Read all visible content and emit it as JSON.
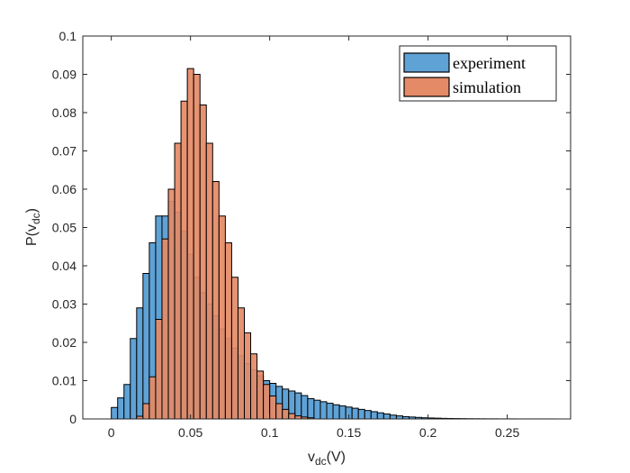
{
  "chart_data": {
    "type": "bar",
    "subtype": "overlapping-histogram",
    "xlabel": {
      "main": "v",
      "sub": "dc",
      "suffix": "(V)"
    },
    "ylabel": {
      "main": "P(v",
      "sub": "dc",
      "suffix": ")"
    },
    "xlim": [
      -0.018,
      0.29
    ],
    "ylim": [
      0,
      0.1
    ],
    "xticks": [
      0,
      0.05,
      0.1,
      0.15,
      0.2,
      0.25
    ],
    "xtick_labels": [
      "0",
      "0.05",
      "0.1",
      "0.15",
      "0.2",
      "0.25"
    ],
    "yticks": [
      0,
      0.01,
      0.02,
      0.03,
      0.04,
      0.05,
      0.06,
      0.07,
      0.08,
      0.09,
      0.1
    ],
    "ytick_labels": [
      "0",
      "0.01",
      "0.02",
      "0.03",
      "0.04",
      "0.05",
      "0.06",
      "0.07",
      "0.08",
      "0.09",
      "0.1"
    ],
    "grid": false,
    "legend_position": "top-right",
    "bin_width": 0.004,
    "series": [
      {
        "name": "experiment",
        "color": "#5fa2d6",
        "bin_start": 0,
        "values": [
          0.003,
          0.0055,
          0.009,
          0.021,
          0.029,
          0.038,
          0.046,
          0.053,
          0.053,
          0.0568,
          0.054,
          0.049,
          0.043,
          0.037,
          0.033,
          0.03,
          0.027,
          0.0235,
          0.021,
          0.0185,
          0.0165,
          0.0145,
          0.0128,
          0.0113,
          0.01,
          0.0093,
          0.0085,
          0.0078,
          0.0073,
          0.0068,
          0.0061,
          0.0053,
          0.0049,
          0.0045,
          0.0041,
          0.0037,
          0.0034,
          0.0031,
          0.0028,
          0.0025,
          0.0022,
          0.0019,
          0.0016,
          0.0013,
          0.001,
          0.0008,
          0.0006,
          0.0005,
          0.0004,
          0.0003,
          0.00025,
          0.0002,
          0.00015,
          0.00012,
          0.0001,
          8e-05,
          6e-05,
          5e-05,
          4e-05,
          3e-05,
          3e-05,
          2e-05,
          2e-05,
          2e-05,
          1e-05,
          1e-05,
          1e-05,
          1e-05,
          1e-05,
          1e-05
        ]
      },
      {
        "name": "simulation",
        "color": "#e58a66",
        "bin_start": 0.016,
        "values": [
          0.0007,
          0.004,
          0.011,
          0.026,
          0.047,
          0.06,
          0.072,
          0.083,
          0.0915,
          0.09,
          0.082,
          0.072,
          0.062,
          0.053,
          0.046,
          0.037,
          0.029,
          0.0225,
          0.017,
          0.0125,
          0.009,
          0.006,
          0.004,
          0.0025,
          0.0014,
          0.0008,
          0.0005,
          0.0003
        ]
      }
    ]
  }
}
